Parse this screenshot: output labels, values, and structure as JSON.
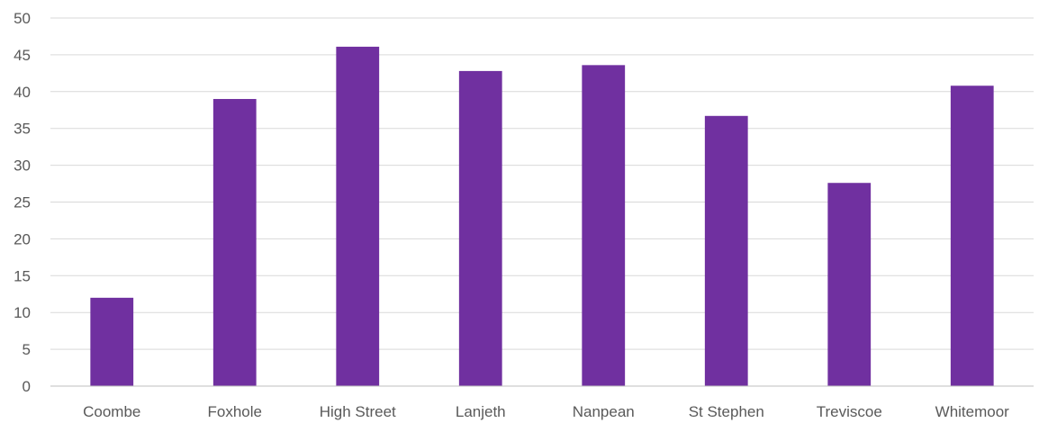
{
  "chart_data": {
    "type": "bar",
    "title": "",
    "xlabel": "",
    "ylabel": "",
    "categories": [
      "Coombe",
      "Foxhole",
      "High Street",
      "Lanjeth",
      "Nanpean",
      "St Stephen",
      "Treviscoe",
      "Whitemoor"
    ],
    "values": [
      12,
      39,
      46.1,
      42.8,
      43.6,
      36.7,
      27.6,
      40.8
    ],
    "ylim": [
      0,
      50
    ],
    "yticks": [
      "0",
      "5",
      "10",
      "15",
      "20",
      "25",
      "30",
      "35",
      "40",
      "45",
      "50"
    ],
    "grid": true,
    "legend": "none",
    "bar_color": "#7030a0"
  }
}
